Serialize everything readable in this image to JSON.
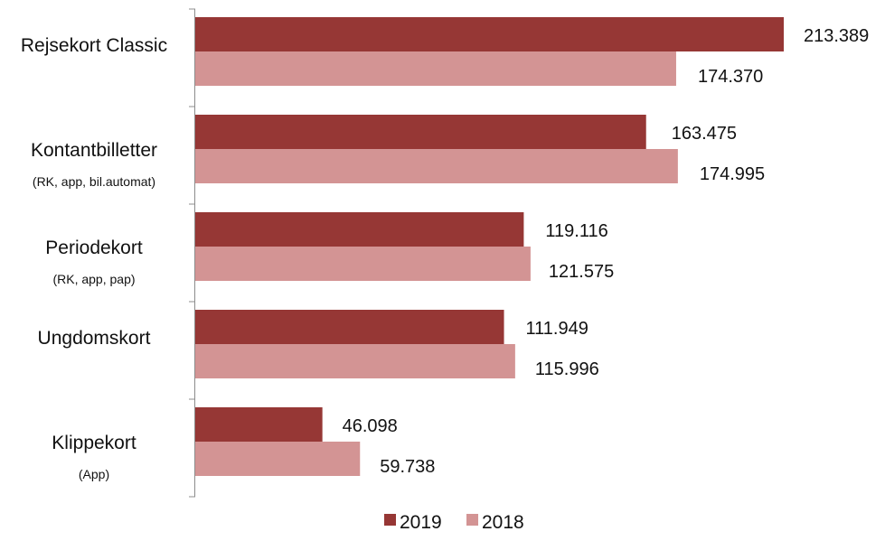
{
  "chart_data": {
    "type": "bar",
    "orientation": "horizontal",
    "categories": [
      {
        "label": "Rejsekort Classic",
        "sublabel": ""
      },
      {
        "label": "Kontantbilletter",
        "sublabel": "(RK, app, bil.automat)"
      },
      {
        "label": "Periodekort",
        "sublabel": "(RK, app, pap)"
      },
      {
        "label": "Ungdomskort",
        "sublabel": ""
      },
      {
        "label": "Klippekort",
        "sublabel": "(App)"
      }
    ],
    "series": [
      {
        "name": "2019",
        "color": "#963735",
        "values": [
          213389,
          163475,
          119116,
          111949,
          46098
        ],
        "labels": [
          "213.389",
          "163.475",
          "119.116",
          "111.949",
          "46.098"
        ]
      },
      {
        "name": "2018",
        "color": "#d39494",
        "values": [
          174370,
          174995,
          121575,
          115996,
          59738
        ],
        "labels": [
          "174.370",
          "174.995",
          "121.575",
          "115.996",
          "59.738"
        ]
      }
    ],
    "xlim": [
      0,
      213389
    ],
    "legend": "bottom",
    "grid": false
  }
}
